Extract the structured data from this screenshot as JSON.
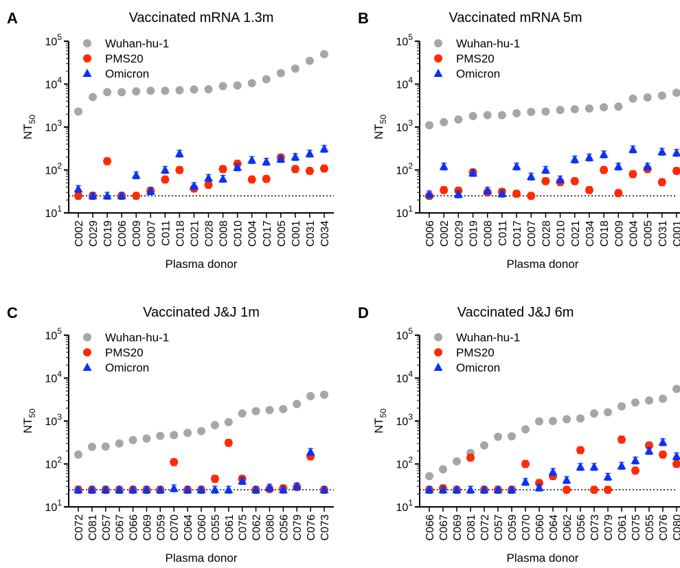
{
  "figure": {
    "x_axis_label": "Plasma donor",
    "y_axis_label": "NT",
    "y_axis_label_sub": "50"
  },
  "colors": {
    "wuhan": "#a6a6a6",
    "pms20": "#ff2a00",
    "omicron": "#0a33f5",
    "threshold": "#000000"
  },
  "chart_data": [
    {
      "panel": "A",
      "type": "scatter",
      "title": "Vaccinated mRNA 1.3m",
      "xlabel": "Plasma donor",
      "ylabel": "NT50",
      "ylim": [
        10,
        100000
      ],
      "yscale": "log",
      "threshold": 25,
      "legend": "top-left",
      "categories": [
        "C002",
        "C029",
        "C019",
        "C006",
        "C009",
        "C007",
        "C011",
        "C018",
        "C021",
        "C028",
        "C008",
        "C010",
        "C004",
        "C017",
        "C005",
        "C001",
        "C031",
        "C034"
      ],
      "series": [
        {
          "name": "Wuhan-hu-1",
          "marker": "circle",
          "values": [
            2300,
            5000,
            6500,
            6500,
            6800,
            7000,
            7000,
            7200,
            7500,
            7600,
            9000,
            9300,
            10500,
            13000,
            18000,
            23000,
            35000,
            50000
          ]
        },
        {
          "name": "PMS20",
          "marker": "circle",
          "values": [
            25,
            25,
            160,
            25,
            25,
            33,
            60,
            100,
            37,
            45,
            105,
            140,
            60,
            62,
            195,
            105,
            95,
            108
          ]
        },
        {
          "name": "Omicron",
          "marker": "triangle",
          "values": [
            36,
            25,
            25,
            25,
            75,
            32,
            100,
            240,
            42,
            65,
            62,
            115,
            170,
            155,
            180,
            200,
            240,
            310
          ]
        }
      ]
    },
    {
      "panel": "B",
      "type": "scatter",
      "title": "Vaccinated mRNA 5m",
      "xlabel": "Plasma donor",
      "ylabel": "NT50",
      "ylim": [
        10,
        100000
      ],
      "yscale": "log",
      "threshold": 25,
      "legend": "top-left",
      "categories": [
        "C006",
        "C002",
        "C029",
        "C019",
        "C008",
        "C011",
        "C017",
        "C007",
        "C028",
        "C010",
        "C021",
        "C034",
        "C018",
        "C009",
        "C004",
        "C005",
        "C031",
        "C001"
      ],
      "series": [
        {
          "name": "Wuhan-hu-1",
          "marker": "circle",
          "values": [
            1100,
            1300,
            1500,
            1800,
            1900,
            1900,
            2100,
            2250,
            2300,
            2500,
            2600,
            2700,
            2900,
            3000,
            4600,
            4900,
            5400,
            6300
          ]
        },
        {
          "name": "PMS20",
          "marker": "circle",
          "values": [
            25,
            34,
            33,
            88,
            30,
            31,
            28,
            25,
            55,
            52,
            55,
            34,
            100,
            29,
            80,
            105,
            52,
            95
          ]
        },
        {
          "name": "Omicron",
          "marker": "triangle",
          "values": [
            27,
            120,
            27,
            85,
            33,
            28,
            120,
            70,
            100,
            60,
            175,
            195,
            230,
            120,
            300,
            120,
            265,
            250
          ]
        }
      ]
    },
    {
      "panel": "C",
      "type": "scatter",
      "title": "Vaccinated J&J 1m",
      "xlabel": "Plasma donor",
      "ylabel": "NT50",
      "ylim": [
        10,
        100000
      ],
      "yscale": "log",
      "threshold": 25,
      "legend": "top-left",
      "categories": [
        "C072",
        "C081",
        "C057",
        "C067",
        "C066",
        "C069",
        "C059",
        "C070",
        "C064",
        "C060",
        "C055",
        "C061",
        "C075",
        "C062",
        "C080",
        "C056",
        "C079",
        "C076",
        "C073"
      ],
      "series": [
        {
          "name": "Wuhan-hu-1",
          "marker": "circle",
          "values": [
            165,
            250,
            255,
            300,
            360,
            390,
            450,
            470,
            530,
            580,
            800,
            940,
            1500,
            1700,
            1800,
            1900,
            2500,
            3800,
            4100
          ]
        },
        {
          "name": "PMS20",
          "marker": "circle",
          "values": [
            25,
            25,
            25,
            25,
            25,
            25,
            25,
            110,
            25,
            25,
            45,
            310,
            45,
            25,
            26,
            27,
            29,
            150,
            25
          ]
        },
        {
          "name": "Omicron",
          "marker": "triangle",
          "values": [
            25,
            25,
            25,
            25,
            25,
            25,
            25,
            27,
            25,
            25,
            25,
            25,
            40,
            25,
            28,
            25,
            30,
            190,
            25
          ]
        }
      ]
    },
    {
      "panel": "D",
      "type": "scatter",
      "title": "Vaccinated J&J 6m",
      "xlabel": "Plasma donor",
      "ylabel": "NT50",
      "ylim": [
        10,
        100000
      ],
      "yscale": "log",
      "threshold": 25,
      "legend": "top-left",
      "categories": [
        "C066",
        "C067",
        "C069",
        "C081",
        "C072",
        "C057",
        "C059",
        "C070",
        "C060",
        "C064",
        "C062",
        "C056",
        "C073",
        "C079",
        "C061",
        "C075",
        "C055",
        "C076",
        "C080"
      ],
      "series": [
        {
          "name": "Wuhan-hu-1",
          "marker": "circle",
          "values": [
            52,
            75,
            115,
            180,
            270,
            430,
            440,
            640,
            980,
            1000,
            1100,
            1150,
            1500,
            1600,
            2200,
            2700,
            3000,
            3300,
            5600
          ]
        },
        {
          "name": "PMS20",
          "marker": "circle",
          "values": [
            25,
            27,
            25,
            140,
            25,
            25,
            25,
            100,
            36,
            52,
            25,
            210,
            25,
            25,
            370,
            70,
            270,
            165,
            100
          ]
        },
        {
          "name": "Omicron",
          "marker": "triangle",
          "values": [
            25,
            25,
            25,
            25,
            25,
            25,
            25,
            38,
            28,
            65,
            42,
            85,
            85,
            50,
            90,
            120,
            200,
            320,
            150
          ]
        }
      ]
    }
  ]
}
